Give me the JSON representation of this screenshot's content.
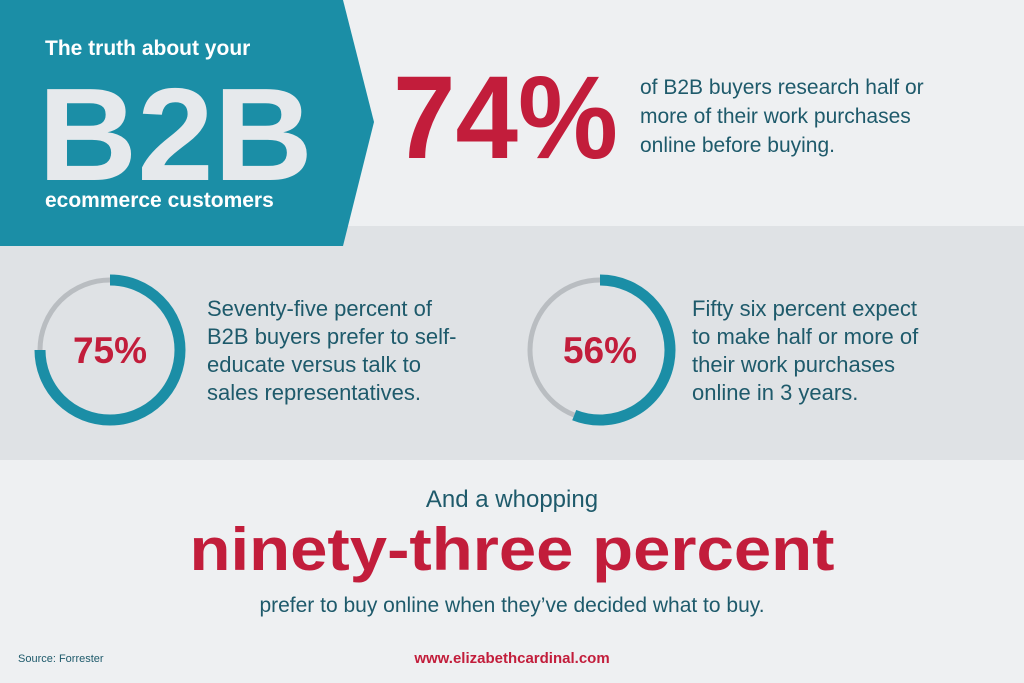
{
  "header": {
    "line1": "The truth about your",
    "big": "B2B",
    "line2": "ecommerce customers"
  },
  "headline_stat": {
    "label": "74%",
    "lines": [
      "of B2B buyers research half or",
      "more of their work purchases",
      "online before buying."
    ]
  },
  "stats": [
    {
      "value": 75,
      "label": "75%",
      "lines": [
        "Seventy-five percent of",
        "B2B buyers prefer to self-",
        "educate versus talk to",
        "sales representatives."
      ]
    },
    {
      "value": 56,
      "label": "56%",
      "lines": [
        "Fifty six percent expect",
        "to make half or more of",
        "their work purchases",
        "online in 3 years."
      ]
    }
  ],
  "closing": {
    "intro": "And a whopping",
    "highlight": "ninety-three percent",
    "text": "prefer to buy online when they’ve decided what to buy."
  },
  "footer": {
    "source": "Source: Forrester",
    "url": "www.elizabethcardinal.com"
  }
}
